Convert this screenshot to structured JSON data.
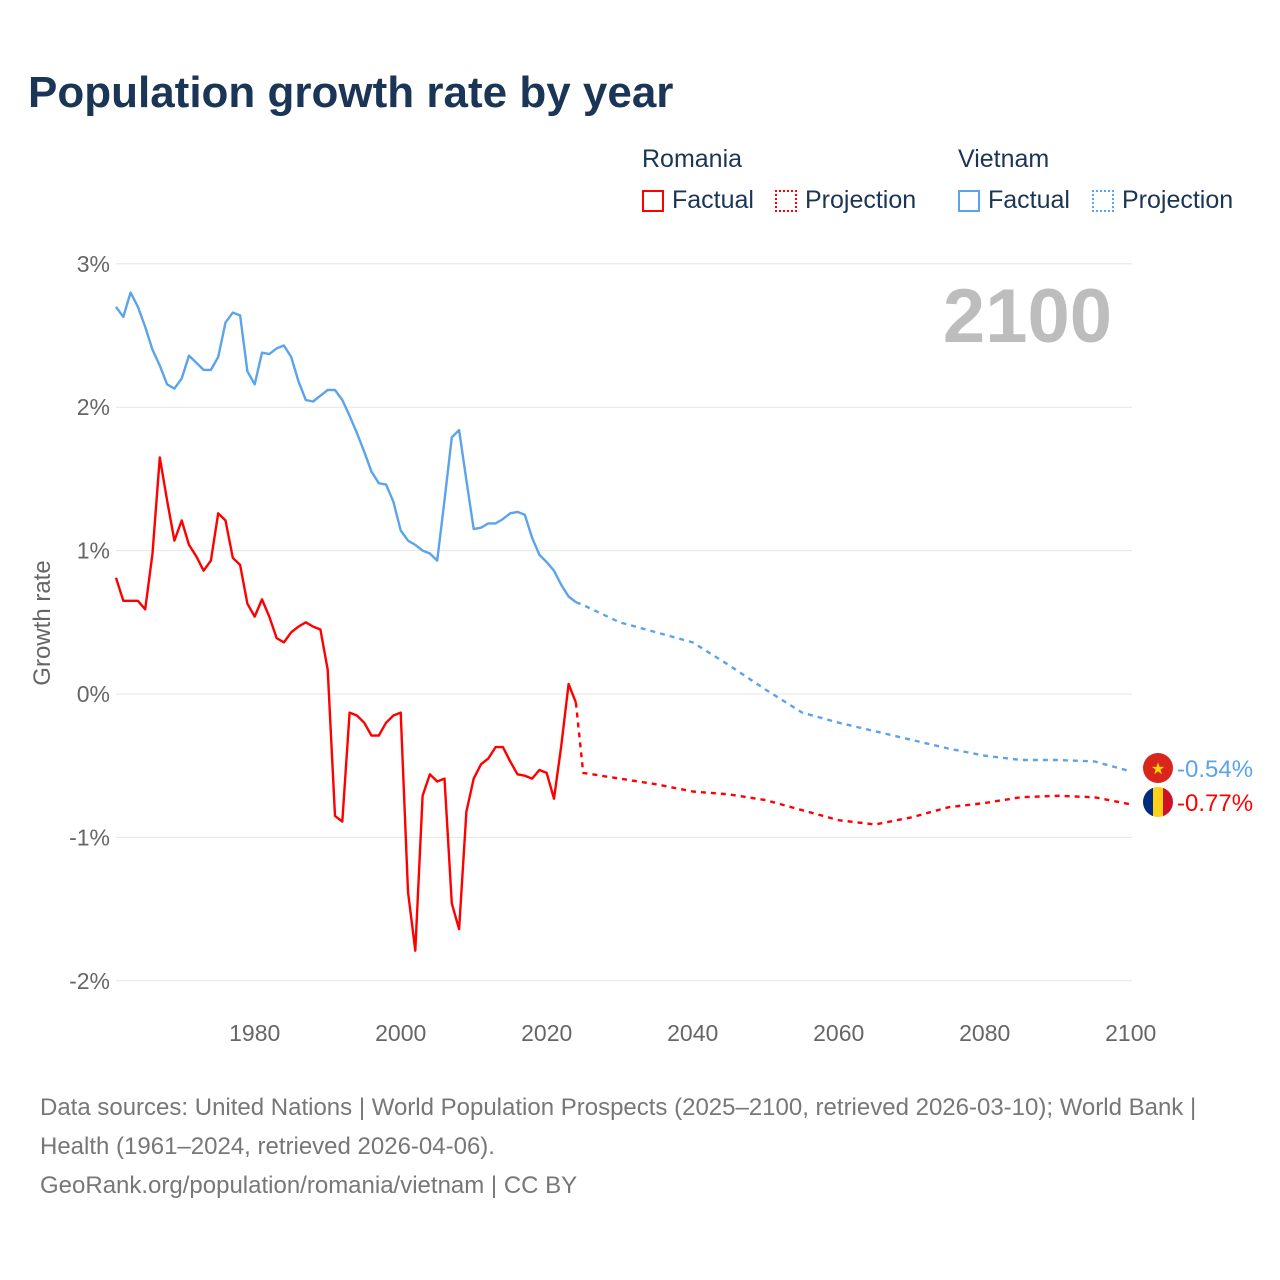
{
  "title": "Population growth rate by year",
  "legend": {
    "groups": [
      {
        "name": "Romania",
        "factual": "Factual",
        "projection": "Projection",
        "color": "#ff0000"
      },
      {
        "name": "Vietnam",
        "factual": "Factual",
        "projection": "Projection",
        "color": "#5ba4ea"
      }
    ]
  },
  "year_label": "2100",
  "footer": {
    "sources": "Data sources: United Nations | World Population Prospects (2025–2100, retrieved 2026-03-10); World Bank | Health (1961–2024, retrieved 2026-04-06).",
    "credit": "GeoRank.org/population/romania/vietnam | CC BY"
  },
  "chart_data": {
    "type": "line",
    "title": "Population growth rate by year",
    "xlabel": "",
    "ylabel": "Growth rate",
    "xlim": [
      1961,
      2100
    ],
    "ylim": [
      -2.3,
      3.1
    ],
    "xticks": [
      1980,
      2000,
      2020,
      2040,
      2060,
      2080,
      2100
    ],
    "xtick_labels": [
      "1980",
      "2000",
      "2020",
      "2040",
      "2060",
      "2080",
      "2100"
    ],
    "yticks": [
      3,
      2,
      1,
      0,
      -1,
      -2
    ],
    "ytick_labels": [
      "3%",
      "2%",
      "1%",
      "0%",
      "-1%",
      "-2%"
    ],
    "grid": true,
    "series": [
      {
        "name": "Vietnam",
        "kind": "factual",
        "color": "#5ba4ea",
        "x_start": 1961,
        "values": [
          2.7,
          2.63,
          2.8,
          2.7,
          2.56,
          2.4,
          2.29,
          2.16,
          2.13,
          2.2,
          2.36,
          2.31,
          2.26,
          2.26,
          2.35,
          2.59,
          2.66,
          2.64,
          2.25,
          2.16,
          2.38,
          2.37,
          2.41,
          2.43,
          2.35,
          2.18,
          2.05,
          2.04,
          2.08,
          2.12,
          2.12,
          2.05,
          1.94,
          1.82,
          1.69,
          1.55,
          1.47,
          1.46,
          1.34,
          1.14,
          1.07,
          1.04,
          1.0,
          0.98,
          0.93,
          1.35,
          1.79,
          1.84,
          1.49,
          1.15,
          1.16,
          1.19,
          1.19,
          1.22,
          1.26,
          1.27,
          1.25,
          1.09,
          0.97,
          0.92,
          0.86,
          0.76,
          0.68,
          0.64
        ]
      },
      {
        "name": "Vietnam",
        "kind": "projection",
        "color": "#5ba4ea",
        "x": [
          2024,
          2025,
          2030,
          2035,
          2040,
          2045,
          2050,
          2055,
          2060,
          2065,
          2070,
          2075,
          2080,
          2085,
          2090,
          2095,
          2100
        ],
        "values": [
          0.64,
          0.62,
          0.5,
          0.43,
          0.36,
          0.2,
          0.03,
          -0.13,
          -0.2,
          -0.26,
          -0.32,
          -0.38,
          -0.43,
          -0.46,
          -0.46,
          -0.47,
          -0.54
        ]
      },
      {
        "name": "Romania",
        "kind": "factual",
        "color": "#ff0000",
        "x_start": 1961,
        "values": [
          0.81,
          0.65,
          0.65,
          0.65,
          0.59,
          0.98,
          1.65,
          1.35,
          1.07,
          1.21,
          1.04,
          0.96,
          0.86,
          0.93,
          1.26,
          1.21,
          0.95,
          0.9,
          0.63,
          0.54,
          0.66,
          0.54,
          0.39,
          0.36,
          0.43,
          0.47,
          0.5,
          0.47,
          0.45,
          0.17,
          -0.85,
          -0.89,
          -0.13,
          -0.15,
          -0.2,
          -0.29,
          -0.29,
          -0.2,
          -0.15,
          -0.13,
          -1.38,
          -1.79,
          -0.71,
          -0.56,
          -0.61,
          -0.59,
          -1.46,
          -1.64,
          -0.82,
          -0.59,
          -0.49,
          -0.45,
          -0.37,
          -0.37,
          -0.47,
          -0.56,
          -0.57,
          -0.59,
          -0.53,
          -0.55,
          -0.73,
          -0.36,
          0.07,
          -0.06
        ]
      },
      {
        "name": "Romania",
        "kind": "projection",
        "color": "#ff0000",
        "x": [
          2024,
          2025,
          2030,
          2035,
          2040,
          2045,
          2050,
          2055,
          2060,
          2065,
          2070,
          2075,
          2080,
          2085,
          2090,
          2095,
          2100
        ],
        "values": [
          -0.06,
          -0.55,
          -0.59,
          -0.63,
          -0.68,
          -0.7,
          -0.74,
          -0.81,
          -0.88,
          -0.91,
          -0.86,
          -0.79,
          -0.76,
          -0.72,
          -0.71,
          -0.72,
          -0.77
        ]
      }
    ],
    "end_labels": [
      {
        "country": "Vietnam",
        "text": "-0.54%",
        "value": -0.54,
        "color": "#5ba4ea"
      },
      {
        "country": "Romania",
        "text": "-0.77%",
        "value": -0.77,
        "color": "#ff0000"
      }
    ]
  }
}
